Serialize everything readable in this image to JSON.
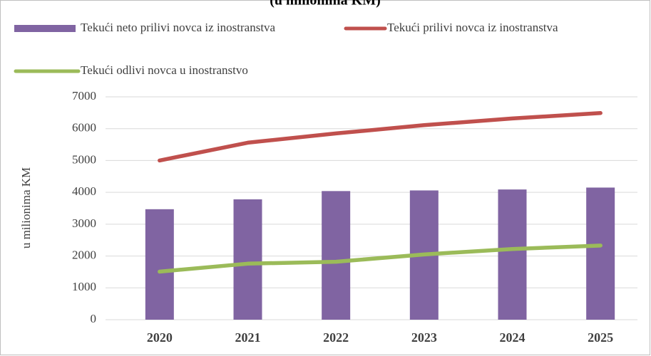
{
  "chart_data": {
    "type": "bar_line",
    "title": "(u milionima KM)",
    "y_axis_label": "u milionima KM",
    "categories": [
      "2020",
      "2021",
      "2022",
      "2023",
      "2024",
      "2025"
    ],
    "series": [
      {
        "name": "Tekući neto prilivi novca iz inostranstva",
        "kind": "bar",
        "color": "#8064a2",
        "values": [
          3470,
          3780,
          4040,
          4060,
          4090,
          4150
        ]
      },
      {
        "name": "Tekući prilivi novca iz inostranstva",
        "kind": "line",
        "color": "#c0504d",
        "values": [
          5000,
          5560,
          5850,
          6110,
          6320,
          6490
        ]
      },
      {
        "name": "Tekući odlivi novca u inostranstvo",
        "kind": "line",
        "color": "#9bbb59",
        "values": [
          1510,
          1760,
          1820,
          2050,
          2220,
          2330
        ]
      }
    ],
    "ylim": [
      0,
      7000
    ],
    "yticks": [
      0,
      1000,
      2000,
      3000,
      4000,
      5000,
      6000,
      7000
    ],
    "grid": true
  }
}
